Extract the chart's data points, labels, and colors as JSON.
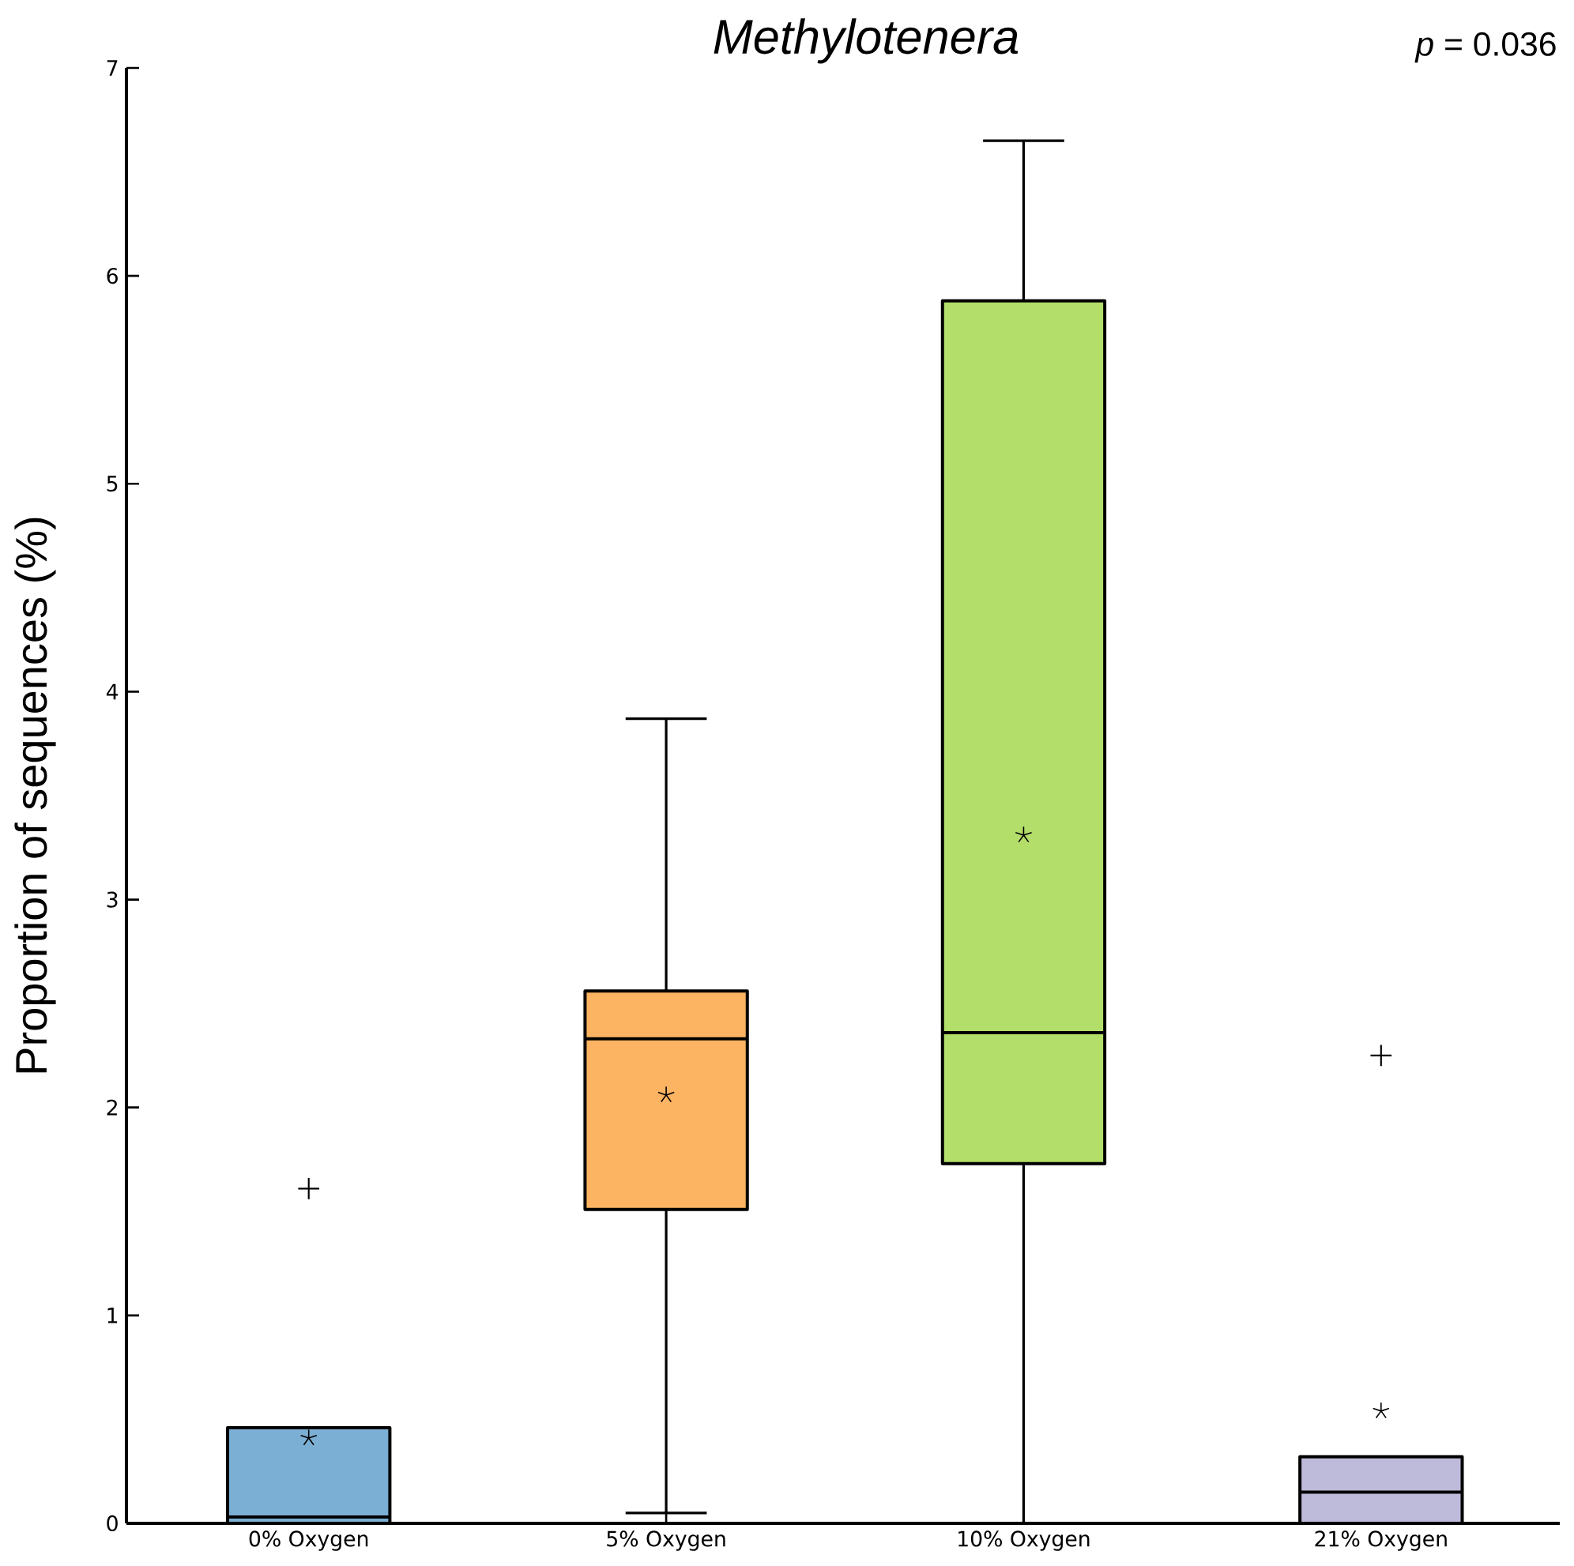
{
  "chart_data": {
    "type": "box",
    "title": "*Methylotenera*",
    "ylabel": "Proportion of sequences (%)",
    "annotations": [
      "*p* = 0.036"
    ],
    "categories": [
      "0% Oxygen",
      "5% Oxygen",
      "10% Oxygen",
      "21% Oxygen"
    ],
    "colors": [
      "#7bafd4",
      "#fdb462",
      "#b3de69",
      "#bebada"
    ],
    "boxes": [
      {
        "low": 0,
        "q1": 0,
        "median": 0.03,
        "q3": 0.46,
        "high": 0.46,
        "mean": 0.41,
        "outliers": [
          1.61
        ]
      },
      {
        "low": 0.05,
        "q1": 1.51,
        "median": 2.33,
        "q3": 2.56,
        "high": 3.87,
        "mean": 2.06
      },
      {
        "low": 0,
        "q1": 1.73,
        "median": 2.36,
        "q3": 5.88,
        "high": 6.65,
        "mean": 3.31
      },
      {
        "low": 0,
        "q1": 0,
        "median": 0.15,
        "q3": 0.32,
        "high": 0.32,
        "mean": 0.54,
        "outliers": [
          2.25
        ]
      }
    ],
    "ylim": [
      0,
      7
    ],
    "yticks": [
      0,
      1,
      2,
      3,
      4,
      5,
      6,
      7
    ],
    "grid": false
  }
}
